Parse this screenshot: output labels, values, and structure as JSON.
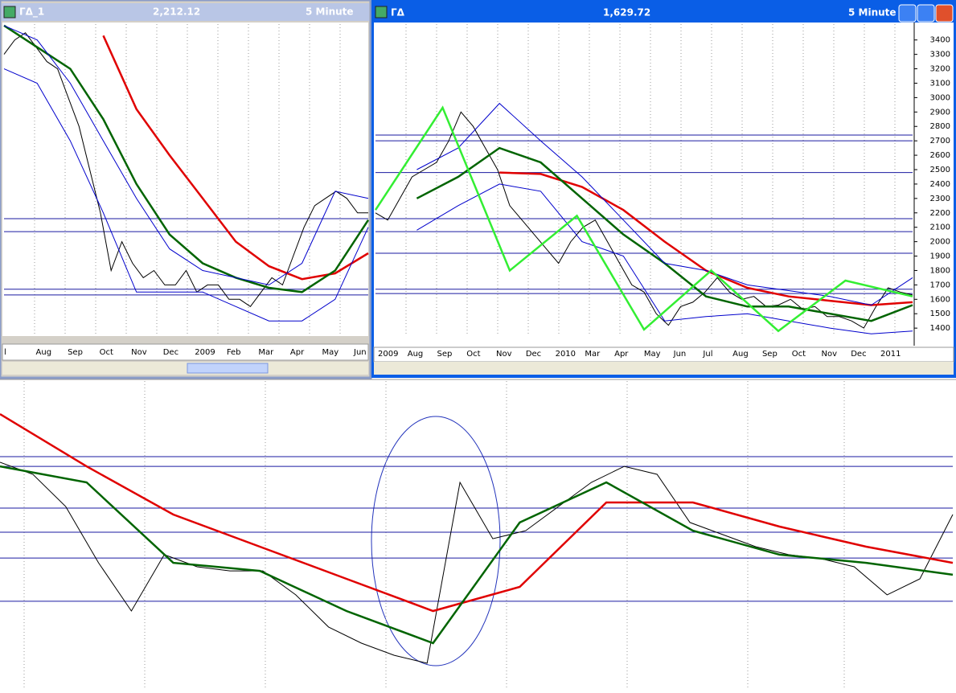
{
  "windows": [
    {
      "title": "ГΔ_1",
      "price": "2,212.12",
      "interval": "5 Minute"
    },
    {
      "title": "ГΔ",
      "price": "1,629.72",
      "interval": "5 Minute"
    }
  ],
  "charts": [
    {
      "type": "line",
      "xlabels": [
        "l",
        "Aug",
        "Sep",
        "Oct",
        "Nov",
        "Dec",
        "2009",
        "Feb",
        "Mar",
        "Apr",
        "May",
        "Jun"
      ],
      "ylim": [
        1345,
        3510
      ],
      "levels": [
        2160,
        2070,
        1670,
        1630
      ],
      "series": [
        {
          "name": "price",
          "color": "#000000",
          "values": [
            3300,
            3400,
            3450,
            3350,
            3250,
            3200,
            3000,
            2800,
            2500,
            2200,
            1800,
            2000,
            1850,
            1750,
            1800,
            1700,
            1700,
            1800,
            1650,
            1700,
            1700,
            1600,
            1600,
            1550,
            1650,
            1750,
            1700,
            1900,
            2100,
            2250,
            2300,
            2350,
            2300,
            2200,
            2200
          ]
        },
        {
          "name": "ma-long",
          "color": "#e00000",
          "values": [
            null,
            null,
            null,
            3430,
            2920,
            2600,
            2300,
            2000,
            1830,
            1740,
            1780,
            1920
          ]
        },
        {
          "name": "ma-short",
          "color": "#006400",
          "values": [
            3500,
            3350,
            3200,
            2850,
            2400,
            2050,
            1850,
            1750,
            1680,
            1650,
            1800,
            2150
          ]
        },
        {
          "name": "band-upper",
          "color": "#0000cc",
          "values": [
            3500,
            3400,
            3100,
            2700,
            2300,
            1950,
            1800,
            1750,
            1700,
            1850,
            2350,
            2300
          ]
        },
        {
          "name": "band-lower",
          "color": "#0000cc",
          "values": [
            3200,
            3100,
            2700,
            2200,
            1650,
            1650,
            1650,
            1550,
            1450,
            1450,
            1600,
            2100
          ]
        }
      ]
    },
    {
      "type": "line",
      "xlabels": [
        "2009",
        "Aug",
        "Sep",
        "Oct",
        "Nov",
        "Dec",
        "2010",
        "Mar",
        "Apr",
        "May",
        "Jun",
        "Jul",
        "Aug",
        "Sep",
        "Oct",
        "Nov",
        "Dec",
        "2011"
      ],
      "ylim": [
        1345,
        3510
      ],
      "yticks": [
        1400,
        1500,
        1600,
        1700,
        1800,
        1900,
        2000,
        2100,
        2200,
        2300,
        2400,
        2500,
        2600,
        2700,
        2800,
        2900,
        3000,
        3100,
        3200,
        3300,
        3400
      ],
      "levels": [
        2740,
        2700,
        2480,
        2160,
        2070,
        1920,
        1670,
        1640
      ],
      "series": [
        {
          "name": "price",
          "color": "#000000",
          "values": [
            2200,
            2150,
            2300,
            2450,
            2500,
            2550,
            2700,
            2900,
            2800,
            2650,
            2500,
            2250,
            2150,
            2050,
            1950,
            1850,
            2000,
            2100,
            2150,
            2000,
            1850,
            1700,
            1650,
            1500,
            1420,
            1550,
            1580,
            1650,
            1750,
            1650,
            1600,
            1620,
            1550,
            1560,
            1600,
            1530,
            1550,
            1480,
            1480,
            1450,
            1400,
            1550,
            1680,
            1650,
            1630
          ]
        },
        {
          "name": "ma-long",
          "color": "#e00000",
          "values": [
            null,
            null,
            null,
            2480,
            2470,
            2380,
            2220,
            2000,
            1800,
            1680,
            1620,
            1590,
            1560,
            1580
          ]
        },
        {
          "name": "ma-short",
          "color": "#006400",
          "values": [
            null,
            2300,
            2450,
            2650,
            2550,
            2300,
            2050,
            1850,
            1620,
            1550,
            1550,
            1500,
            1450,
            1560
          ]
        },
        {
          "name": "band-upper",
          "color": "#0000cc",
          "values": [
            null,
            2500,
            2650,
            2960,
            2700,
            2450,
            2150,
            1850,
            1800,
            1700,
            1660,
            1620,
            1560,
            1750
          ]
        },
        {
          "name": "band-lower",
          "color": "#0000cc",
          "values": [
            null,
            2080,
            2250,
            2400,
            2350,
            2000,
            1900,
            1450,
            1480,
            1500,
            1450,
            1400,
            1360,
            1380
          ]
        },
        {
          "name": "zigzag",
          "color": "#33ee33",
          "values": [
            2220,
            2930,
            1800,
            2180,
            1390,
            1800,
            1380,
            1730,
            1620
          ]
        }
      ]
    },
    {
      "type": "line",
      "ylim": [
        1200,
        2800
      ],
      "levels": [
        2396,
        2346,
        2132,
        2008,
        1876,
        1654
      ],
      "series": [
        {
          "name": "price",
          "color": "#000000",
          "values": [
            2367,
            2305,
            2140,
            1851,
            1604,
            1893,
            1831,
            1810,
            1810,
            1687,
            1522,
            1439,
            1377,
            1336,
            2264,
            1975,
            2016,
            2140,
            2264,
            2346,
            2305,
            2058,
            1996,
            1934,
            1893,
            1872,
            1831,
            1687,
            1769,
            2099
          ]
        },
        {
          "name": "ma-long",
          "color": "#e00000",
          "values": [
            2614,
            2346,
            2099,
            1934,
            1769,
            1604,
            1728,
            2161,
            2161,
            2037,
            1934,
            1851
          ]
        },
        {
          "name": "ma-short",
          "color": "#006400",
          "values": [
            2346,
            2264,
            1851,
            1810,
            1604,
            1439,
            2058,
            2264,
            2016,
            1893,
            1851,
            1790
          ]
        }
      ]
    }
  ]
}
